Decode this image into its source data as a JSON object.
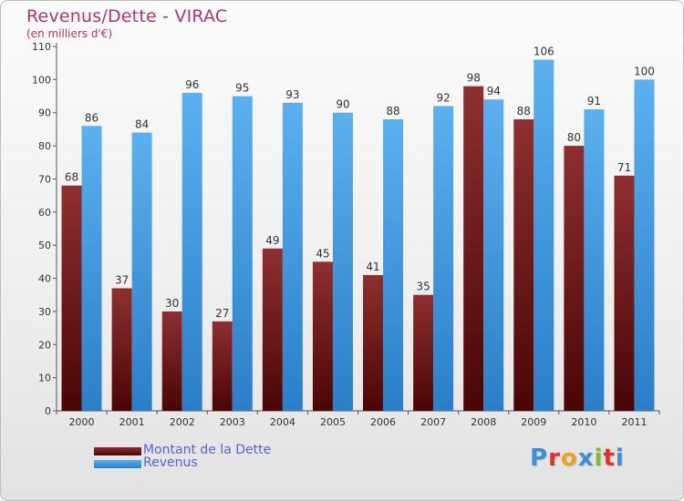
{
  "chart_data": {
    "type": "bar",
    "title": "Revenus/Dette - VIRAC",
    "subtitle": "(en milliers d'€)",
    "categories": [
      "2000",
      "2001",
      "2002",
      "2003",
      "2004",
      "2005",
      "2006",
      "2007",
      "2008",
      "2009",
      "2010",
      "2011"
    ],
    "series": [
      {
        "name": "Montant de la Dette",
        "color": "#7a1e1e",
        "values": [
          68,
          37,
          30,
          27,
          49,
          45,
          41,
          35,
          98,
          88,
          80,
          71
        ]
      },
      {
        "name": "Revenus",
        "color": "#3c97e0",
        "values": [
          86,
          84,
          96,
          95,
          93,
          90,
          88,
          92,
          94,
          106,
          91,
          100
        ]
      }
    ],
    "ylim": [
      0,
      110
    ],
    "yticks": [
      0,
      10,
      20,
      30,
      40,
      50,
      60,
      70,
      80,
      90,
      100,
      110
    ],
    "grid": false,
    "legend_position": "bottom-left"
  },
  "logo": {
    "letters": [
      "P",
      "r",
      "o",
      "x",
      "i",
      "t",
      "i"
    ],
    "colors": [
      "#3a8fd6",
      "#e0312b",
      "#f2a21a",
      "#3a8fd6",
      "#7cbf2e",
      "#e0312b",
      "#3a8fd6"
    ]
  }
}
